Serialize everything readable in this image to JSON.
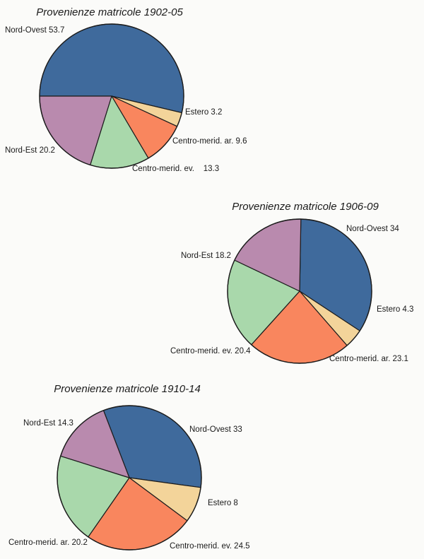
{
  "colors": {
    "nord_ovest": "#3f6a9c",
    "nord_est": "#b98aae",
    "centro_ev": "#a9d8ab",
    "centro_ar": "#f9865e",
    "estero": "#f3d49a",
    "outline": "#1c1c1c"
  },
  "chart_data": [
    {
      "type": "pie",
      "title": "Provenienze matricole 1902-05",
      "slices": [
        {
          "name": "Nord-Ovest",
          "value": 53.7,
          "label": "Nord-Ovest  53.7",
          "color_key": "nord_ovest"
        },
        {
          "name": "Estero",
          "value": 3.2,
          "label": "Estero  3.2",
          "color_key": "estero"
        },
        {
          "name": "Centro-merid. ar.",
          "value": 9.6,
          "label": "Centro-merid. ar.  9.6",
          "color_key": "centro_ar"
        },
        {
          "name": "Centro-merid. ev.",
          "value": 13.3,
          "label": "Centro-merid. ev.    13.3",
          "color_key": "centro_ev"
        },
        {
          "name": "Nord-Est",
          "value": 20.2,
          "label": "Nord-Est  20.2",
          "color_key": "nord_est"
        }
      ]
    },
    {
      "type": "pie",
      "title": "Provenienze matricole 1906-09",
      "slices": [
        {
          "name": "Nord-Ovest",
          "value": 34,
          "label": "Nord-Ovest  34",
          "color_key": "nord_ovest"
        },
        {
          "name": "Estero",
          "value": 4.3,
          "label": "Estero  4.3",
          "color_key": "estero"
        },
        {
          "name": "Centro-merid. ar.",
          "value": 23.1,
          "label": "Centro-merid. ar.  23.1",
          "color_key": "centro_ar"
        },
        {
          "name": "Centro-merid. ev.",
          "value": 20.4,
          "label": "Centro-merid. ev.  20.4",
          "color_key": "centro_ev"
        },
        {
          "name": "Nord-Est",
          "value": 18.2,
          "label": "Nord-Est  18.2",
          "color_key": "nord_est"
        }
      ]
    },
    {
      "type": "pie",
      "title": "Provenienze matricole 1910-14",
      "slices": [
        {
          "name": "Nord-Ovest",
          "value": 33,
          "label": "Nord-Ovest  33",
          "color_key": "nord_ovest"
        },
        {
          "name": "Estero",
          "value": 8,
          "label": "Estero  8",
          "color_key": "estero"
        },
        {
          "name": "Centro-merid. ev.",
          "value": 24.5,
          "label": "Centro-merid. ev.  24.5",
          "color_key": "centro_ar"
        },
        {
          "name": "Centro-merid. ar.",
          "value": 20.2,
          "label": "Centro-merid. ar.  20.2",
          "color_key": "centro_ev"
        },
        {
          "name": "Nord-Est",
          "value": 14.3,
          "label": "Nord-Est  14.3",
          "color_key": "nord_est"
        }
      ]
    }
  ]
}
